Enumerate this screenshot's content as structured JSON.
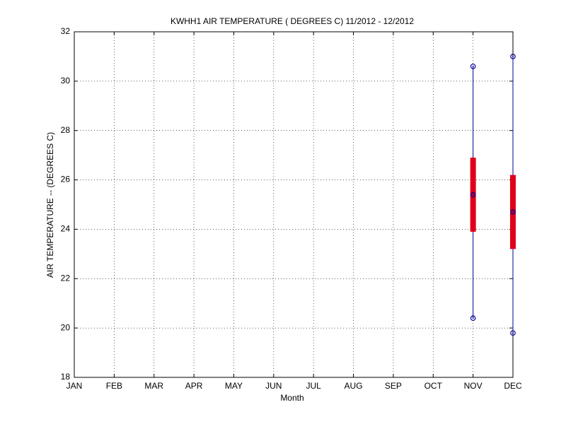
{
  "chart_data": {
    "type": "box",
    "title": "KWHH1  AIR TEMPERATURE ( DEGREES C) 11/2012 - 12/2012",
    "xlabel": "Month",
    "ylabel": "AIR TEMPERATURE -- (DEGREES C)",
    "categories": [
      "JAN",
      "FEB",
      "MAR",
      "APR",
      "MAY",
      "JUN",
      "JUL",
      "AUG",
      "SEP",
      "OCT",
      "NOV",
      "DEC"
    ],
    "min": [
      null,
      null,
      null,
      null,
      null,
      null,
      null,
      null,
      null,
      null,
      20.4,
      19.8
    ],
    "q1": [
      null,
      null,
      null,
      null,
      null,
      null,
      null,
      null,
      null,
      null,
      23.9,
      23.2
    ],
    "median": [
      null,
      null,
      null,
      null,
      null,
      null,
      null,
      null,
      null,
      null,
      25.4,
      24.7
    ],
    "q3": [
      null,
      null,
      null,
      null,
      null,
      null,
      null,
      null,
      null,
      null,
      26.9,
      26.2
    ],
    "max": [
      null,
      null,
      null,
      null,
      null,
      null,
      null,
      null,
      null,
      null,
      30.6,
      31.0
    ],
    "whisker_color": "#000090",
    "box_color": "#e0001b",
    "ylim": [
      18,
      32
    ],
    "yticks": [
      18,
      20,
      22,
      24,
      26,
      28,
      30,
      32
    ],
    "grid": true
  }
}
